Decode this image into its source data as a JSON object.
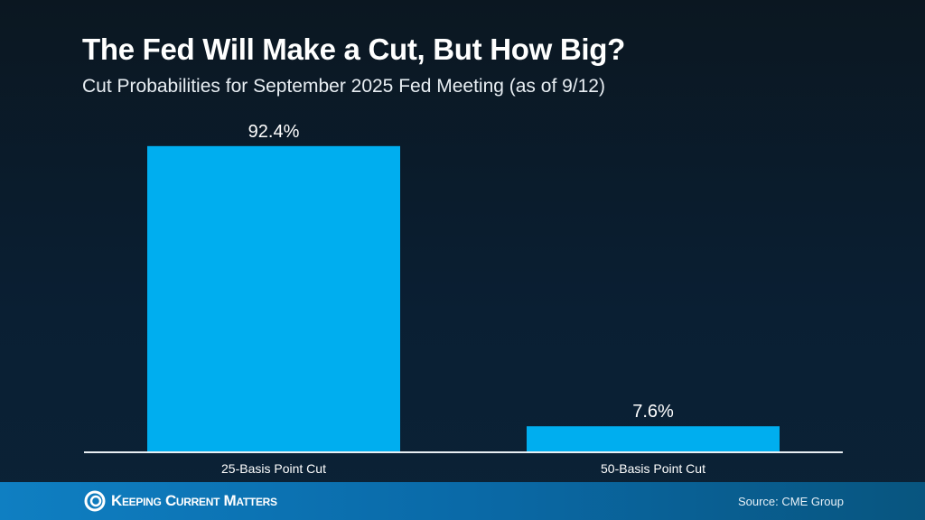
{
  "chart_data": {
    "type": "bar",
    "title": "The Fed Will Make a Cut, But How Big?",
    "subtitle": "Cut Probabilities for September 2025 Fed Meeting (as of 9/12)",
    "categories": [
      "25-Basis Point Cut",
      "50-Basis Point Cut"
    ],
    "values": [
      92.4,
      7.6
    ],
    "data_labels": [
      "92.4%",
      "7.6%"
    ],
    "ylim": [
      0,
      100
    ],
    "grid": false,
    "bar_color": "#00aeef"
  },
  "footer": {
    "brand": "Keeping Current Matters",
    "source": "Source: CME Group"
  }
}
